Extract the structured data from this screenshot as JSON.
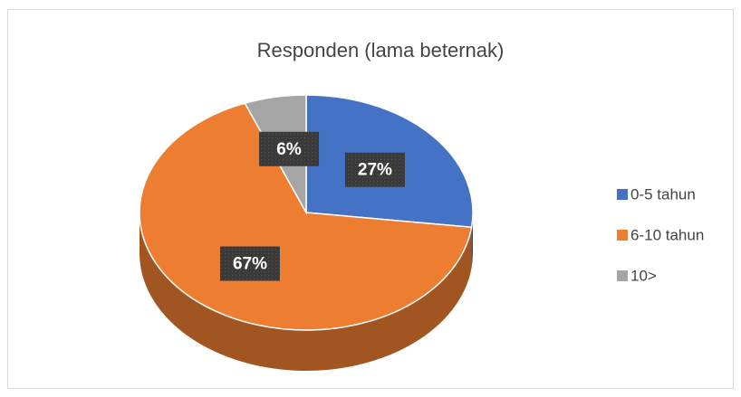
{
  "chart_data": {
    "type": "pie",
    "title": "Responden (lama beternak)",
    "categories": [
      "0-5 tahun",
      "6-10 tahun",
      "10>"
    ],
    "values": [
      27,
      67,
      6
    ],
    "value_labels": [
      "27%",
      "67%",
      "6%"
    ],
    "colors": [
      "#4472c4",
      "#ed7d31",
      "#a5a5a5"
    ],
    "legend": "right"
  }
}
